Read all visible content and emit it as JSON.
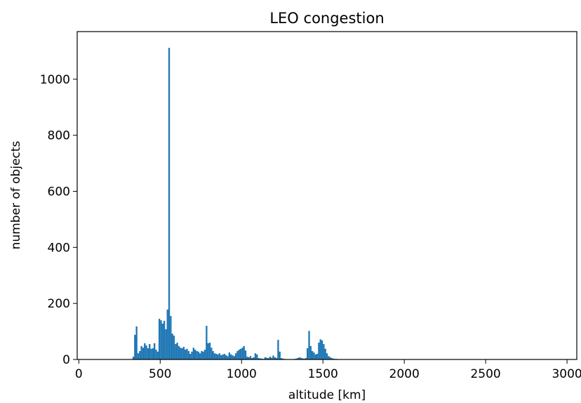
{
  "chart_data": {
    "type": "bar",
    "title": "LEO congestion",
    "xlabel": "altitude [km]",
    "ylabel": "number of objects",
    "xlim": [
      -10,
      3060
    ],
    "ylim": [
      0,
      1170
    ],
    "xticks": [
      0,
      500,
      1000,
      1500,
      2000,
      2500,
      3000
    ],
    "yticks": [
      0,
      200,
      400,
      600,
      800,
      1000
    ],
    "bin_width": 10,
    "bar_color": "#1f77b4",
    "grid": false,
    "legend": "none",
    "bins": [
      [
        330,
        10
      ],
      [
        340,
        88
      ],
      [
        350,
        118
      ],
      [
        360,
        22
      ],
      [
        370,
        30
      ],
      [
        380,
        48
      ],
      [
        390,
        42
      ],
      [
        400,
        58
      ],
      [
        410,
        50
      ],
      [
        420,
        40
      ],
      [
        430,
        55
      ],
      [
        440,
        38
      ],
      [
        450,
        40
      ],
      [
        460,
        58
      ],
      [
        470,
        35
      ],
      [
        480,
        28
      ],
      [
        490,
        145
      ],
      [
        500,
        140
      ],
      [
        510,
        128
      ],
      [
        520,
        138
      ],
      [
        530,
        108
      ],
      [
        540,
        178
      ],
      [
        550,
        1112
      ],
      [
        560,
        155
      ],
      [
        570,
        92
      ],
      [
        580,
        85
      ],
      [
        590,
        55
      ],
      [
        600,
        60
      ],
      [
        610,
        48
      ],
      [
        620,
        42
      ],
      [
        630,
        40
      ],
      [
        640,
        45
      ],
      [
        650,
        35
      ],
      [
        660,
        38
      ],
      [
        670,
        30
      ],
      [
        680,
        20
      ],
      [
        690,
        28
      ],
      [
        700,
        42
      ],
      [
        710,
        35
      ],
      [
        720,
        30
      ],
      [
        730,
        28
      ],
      [
        740,
        22
      ],
      [
        750,
        30
      ],
      [
        760,
        28
      ],
      [
        770,
        35
      ],
      [
        780,
        120
      ],
      [
        790,
        58
      ],
      [
        800,
        60
      ],
      [
        810,
        42
      ],
      [
        820,
        30
      ],
      [
        830,
        22
      ],
      [
        840,
        20
      ],
      [
        850,
        18
      ],
      [
        860,
        22
      ],
      [
        870,
        15
      ],
      [
        880,
        18
      ],
      [
        890,
        20
      ],
      [
        900,
        15
      ],
      [
        910,
        12
      ],
      [
        920,
        25
      ],
      [
        930,
        18
      ],
      [
        940,
        15
      ],
      [
        950,
        12
      ],
      [
        960,
        22
      ],
      [
        970,
        30
      ],
      [
        980,
        35
      ],
      [
        990,
        38
      ],
      [
        1000,
        42
      ],
      [
        1010,
        48
      ],
      [
        1020,
        32
      ],
      [
        1030,
        10
      ],
      [
        1040,
        8
      ],
      [
        1050,
        12
      ],
      [
        1060,
        5
      ],
      [
        1070,
        8
      ],
      [
        1080,
        22
      ],
      [
        1090,
        18
      ],
      [
        1100,
        5
      ],
      [
        1110,
        4
      ],
      [
        1120,
        3
      ],
      [
        1130,
        2
      ],
      [
        1140,
        8
      ],
      [
        1150,
        6
      ],
      [
        1160,
        5
      ],
      [
        1170,
        10
      ],
      [
        1180,
        6
      ],
      [
        1190,
        14
      ],
      [
        1200,
        8
      ],
      [
        1210,
        5
      ],
      [
        1220,
        70
      ],
      [
        1230,
        28
      ],
      [
        1240,
        5
      ],
      [
        1250,
        3
      ],
      [
        1260,
        2
      ],
      [
        1270,
        1
      ],
      [
        1280,
        1
      ],
      [
        1290,
        1
      ],
      [
        1300,
        1
      ],
      [
        1310,
        1
      ],
      [
        1320,
        2
      ],
      [
        1330,
        3
      ],
      [
        1340,
        5
      ],
      [
        1350,
        8
      ],
      [
        1360,
        6
      ],
      [
        1370,
        4
      ],
      [
        1380,
        3
      ],
      [
        1390,
        5
      ],
      [
        1400,
        40
      ],
      [
        1410,
        102
      ],
      [
        1420,
        48
      ],
      [
        1430,
        30
      ],
      [
        1440,
        25
      ],
      [
        1450,
        18
      ],
      [
        1460,
        20
      ],
      [
        1470,
        60
      ],
      [
        1480,
        72
      ],
      [
        1490,
        68
      ],
      [
        1500,
        55
      ],
      [
        1510,
        38
      ],
      [
        1520,
        22
      ],
      [
        1530,
        12
      ],
      [
        1540,
        8
      ],
      [
        1550,
        5
      ],
      [
        1560,
        3
      ],
      [
        1570,
        2
      ],
      [
        1580,
        2
      ],
      [
        1590,
        1
      ],
      [
        1600,
        1
      ],
      [
        1610,
        1
      ],
      [
        1620,
        1
      ],
      [
        1640,
        1
      ],
      [
        1660,
        1
      ],
      [
        1680,
        1
      ],
      [
        1700,
        1
      ],
      [
        1720,
        1
      ],
      [
        1750,
        1
      ]
    ]
  }
}
